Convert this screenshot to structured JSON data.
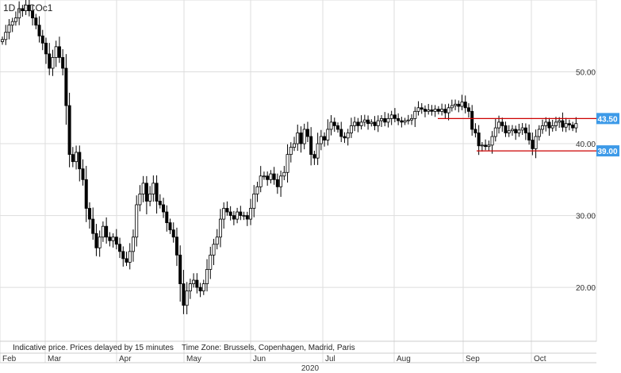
{
  "title": "1D | LCOc1",
  "footer": {
    "note": "Indicative price. Prices delayed by 15 minutes",
    "timezone": "Time Zone: Brussels, Copenhagen, Madrid, Paris"
  },
  "colors": {
    "candle": "#000000",
    "support_resistance": "#cc0000",
    "tag": "#3d9ae8",
    "grid": "#dddddd"
  },
  "chart_data": {
    "type": "candlestick",
    "title": "1D | LCOc1",
    "ylim": [
      12.5,
      60
    ],
    "y_ticks": [
      "20.00",
      "30.00",
      "40.00",
      "50.00"
    ],
    "x_ticks": [
      "Feb",
      "Mar",
      "Apr",
      "May",
      "Jun",
      "Jul",
      "Aug",
      "Sep",
      "Oct"
    ],
    "x_group_label": "2020",
    "grid": true,
    "levels": [
      {
        "label": "43.50",
        "value": 43.5,
        "from": "2020-08-28",
        "to": "2020-10-23"
      },
      {
        "label": "39.00",
        "value": 39.0,
        "from": "2020-09-08",
        "to": "2020-10-23"
      }
    ],
    "close": [
      [
        0,
        54.5
      ],
      [
        1,
        55.5
      ],
      [
        2,
        56.5
      ],
      [
        3,
        57.0
      ],
      [
        4,
        57.5
      ],
      [
        5,
        58.8
      ],
      [
        6,
        58.5
      ],
      [
        7,
        59.3
      ],
      [
        8,
        58.5
      ],
      [
        9,
        57.5
      ],
      [
        10,
        56.5
      ],
      [
        11,
        55.0
      ],
      [
        12,
        54.0
      ],
      [
        13,
        52.5
      ],
      [
        14,
        50.5
      ],
      [
        15,
        52.0
      ],
      [
        16,
        53.5
      ],
      [
        17,
        52.0
      ],
      [
        18,
        50.5
      ],
      [
        19,
        45.3
      ],
      [
        20,
        38.5
      ],
      [
        21,
        37.5
      ],
      [
        22,
        38.8
      ],
      [
        23,
        36.5
      ],
      [
        24,
        35.0
      ],
      [
        25,
        31.0
      ],
      [
        26,
        29.5
      ],
      [
        27,
        27.5
      ],
      [
        28,
        25.5
      ],
      [
        29,
        27.0
      ],
      [
        30,
        28.5
      ],
      [
        31,
        27.0
      ],
      [
        32,
        26.5
      ],
      [
        33,
        27.0
      ],
      [
        34,
        26.0
      ],
      [
        35,
        25.0
      ],
      [
        36,
        24.0
      ],
      [
        37,
        23.5
      ],
      [
        38,
        25.0
      ],
      [
        39,
        27.0
      ],
      [
        40,
        31.5
      ],
      [
        41,
        33.0
      ],
      [
        42,
        34.5
      ],
      [
        43,
        32.0
      ],
      [
        44,
        33.0
      ],
      [
        45,
        34.5
      ],
      [
        46,
        32.0
      ],
      [
        47,
        31.5
      ],
      [
        48,
        30.5
      ],
      [
        49,
        29.0
      ],
      [
        50,
        28.0
      ],
      [
        51,
        27.0
      ],
      [
        52,
        24.5
      ],
      [
        53,
        20.5
      ],
      [
        54,
        17.5
      ],
      [
        55,
        19.5
      ],
      [
        56,
        20.5
      ],
      [
        57,
        21.0
      ],
      [
        58,
        20.0
      ],
      [
        59,
        19.5
      ],
      [
        60,
        20.5
      ],
      [
        61,
        22.5
      ],
      [
        62,
        24.5
      ],
      [
        63,
        26.0
      ],
      [
        64,
        27.0
      ],
      [
        65,
        29.5
      ],
      [
        66,
        31.0
      ],
      [
        67,
        30.5
      ],
      [
        68,
        30.0
      ],
      [
        69,
        29.5
      ],
      [
        70,
        30.5
      ],
      [
        71,
        30.0
      ],
      [
        72,
        30.0
      ],
      [
        73,
        29.5
      ],
      [
        74,
        31.0
      ],
      [
        75,
        33.0
      ],
      [
        76,
        34.0
      ],
      [
        77,
        35.5
      ],
      [
        78,
        35.5
      ],
      [
        79,
        35.0
      ],
      [
        80,
        35.8
      ],
      [
        81,
        35.0
      ],
      [
        82,
        34.0
      ],
      [
        83,
        35.5
      ],
      [
        84,
        36.0
      ],
      [
        85,
        38.5
      ],
      [
        86,
        39.5
      ],
      [
        87,
        40.0
      ],
      [
        88,
        41.5
      ],
      [
        89,
        40.0
      ],
      [
        90,
        42.0
      ],
      [
        91,
        41.0
      ],
      [
        92,
        38.5
      ],
      [
        93,
        38.0
      ],
      [
        94,
        40.0
      ],
      [
        95,
        41.0
      ],
      [
        96,
        40.5
      ],
      [
        97,
        42.0
      ],
      [
        98,
        43.0
      ],
      [
        99,
        42.5
      ],
      [
        100,
        42.0
      ],
      [
        101,
        41.0
      ],
      [
        102,
        40.8
      ],
      [
        103,
        41.5
      ],
      [
        104,
        42.5
      ],
      [
        105,
        43.0
      ],
      [
        106,
        42.5
      ],
      [
        107,
        43.0
      ],
      [
        108,
        43.3
      ],
      [
        109,
        42.8
      ],
      [
        110,
        43.0
      ],
      [
        111,
        42.5
      ],
      [
        112,
        43.2
      ],
      [
        113,
        43.5
      ],
      [
        114,
        43.0
      ],
      [
        115,
        43.5
      ],
      [
        116,
        44.0
      ],
      [
        117,
        43.5
      ],
      [
        118,
        43.2
      ],
      [
        119,
        43.0
      ],
      [
        120,
        43.2
      ],
      [
        121,
        43.3
      ],
      [
        122,
        43.5
      ],
      [
        123,
        44.5
      ],
      [
        124,
        45.0
      ],
      [
        125,
        44.8
      ],
      [
        126,
        44.5
      ],
      [
        127,
        44.7
      ],
      [
        128,
        44.5
      ],
      [
        129,
        44.8
      ],
      [
        130,
        44.5
      ],
      [
        131,
        44.8
      ],
      [
        132,
        44.3
      ],
      [
        133,
        45.0
      ],
      [
        134,
        45.3
      ],
      [
        135,
        45.5
      ],
      [
        136,
        45.2
      ],
      [
        137,
        45.8
      ],
      [
        138,
        45.0
      ],
      [
        139,
        44.5
      ],
      [
        140,
        42.0
      ],
      [
        141,
        41.5
      ],
      [
        142,
        39.7
      ],
      [
        143,
        39.8
      ],
      [
        144,
        39.6
      ],
      [
        145,
        39.8
      ],
      [
        146,
        41.0
      ],
      [
        147,
        42.2
      ],
      [
        148,
        43.0
      ],
      [
        149,
        42.5
      ],
      [
        150,
        41.5
      ],
      [
        151,
        41.8
      ],
      [
        152,
        42.0
      ],
      [
        153,
        41.5
      ],
      [
        154,
        41.9
      ],
      [
        155,
        42.2
      ],
      [
        156,
        41.5
      ],
      [
        157,
        40.5
      ],
      [
        158,
        39.3
      ],
      [
        159,
        41.0
      ],
      [
        160,
        42.0
      ],
      [
        161,
        42.5
      ],
      [
        162,
        43.0
      ],
      [
        163,
        42.2
      ],
      [
        164,
        42.5
      ],
      [
        165,
        43.0
      ],
      [
        166,
        43.2
      ],
      [
        167,
        42.3
      ],
      [
        168,
        42.8
      ],
      [
        169,
        42.6
      ],
      [
        170,
        42.2
      ],
      [
        171,
        42.8
      ]
    ]
  }
}
